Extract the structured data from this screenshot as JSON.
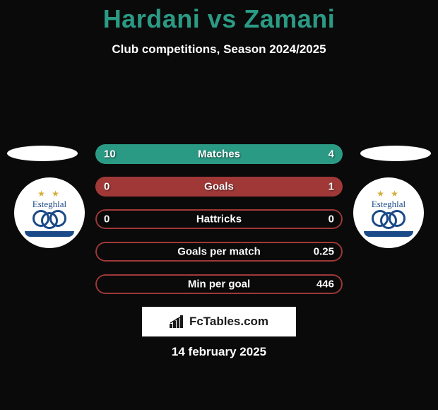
{
  "header": {
    "title": "Hardani vs Zamani",
    "title_color": "#2b9a84",
    "title_fontsize": 36,
    "subtitle": "Club competitions, Season 2024/2025",
    "subtitle_color": "#ffffff",
    "subtitle_fontsize": 17
  },
  "background_color": "#0a0a0a",
  "players": {
    "left": {
      "name": "Hardani",
      "club": "Esteghlal"
    },
    "right": {
      "name": "Zamani",
      "club": "Esteghlal"
    }
  },
  "bars": [
    {
      "label": "Matches",
      "left_value": "10",
      "right_value": "4",
      "left_pct": 71.4,
      "right_pct": 28.6,
      "fill_color": "#2b9a84",
      "border_color": "#2b9a84"
    },
    {
      "label": "Goals",
      "left_value": "0",
      "right_value": "1",
      "left_pct": 0,
      "right_pct": 100,
      "fill_color": "#a03838",
      "border_color": "#a03838"
    },
    {
      "label": "Hattricks",
      "left_value": "0",
      "right_value": "0",
      "left_pct": 0,
      "right_pct": 0,
      "fill_color": "#a03838",
      "border_color": "#a03838"
    },
    {
      "label": "Goals per match",
      "left_value": "",
      "right_value": "0.25",
      "left_pct": 0,
      "right_pct": 0,
      "fill_color": "#a03838",
      "border_color": "#a03838"
    },
    {
      "label": "Min per goal",
      "left_value": "",
      "right_value": "446",
      "left_pct": 0,
      "right_pct": 0,
      "fill_color": "#a03838",
      "border_color": "#a03838"
    }
  ],
  "badge": {
    "bg_color": "#ffffff",
    "ring_color": "#1a4a88",
    "star_color": "#d4af37",
    "script_text": "Esteghlal"
  },
  "ellipse_shadow_color": "#ffffff",
  "footer": {
    "logo_text": "FcTables.com",
    "logo_bg": "#ffffff",
    "logo_text_color": "#1a1a1a",
    "date": "14 february 2025",
    "date_color": "#ffffff"
  }
}
